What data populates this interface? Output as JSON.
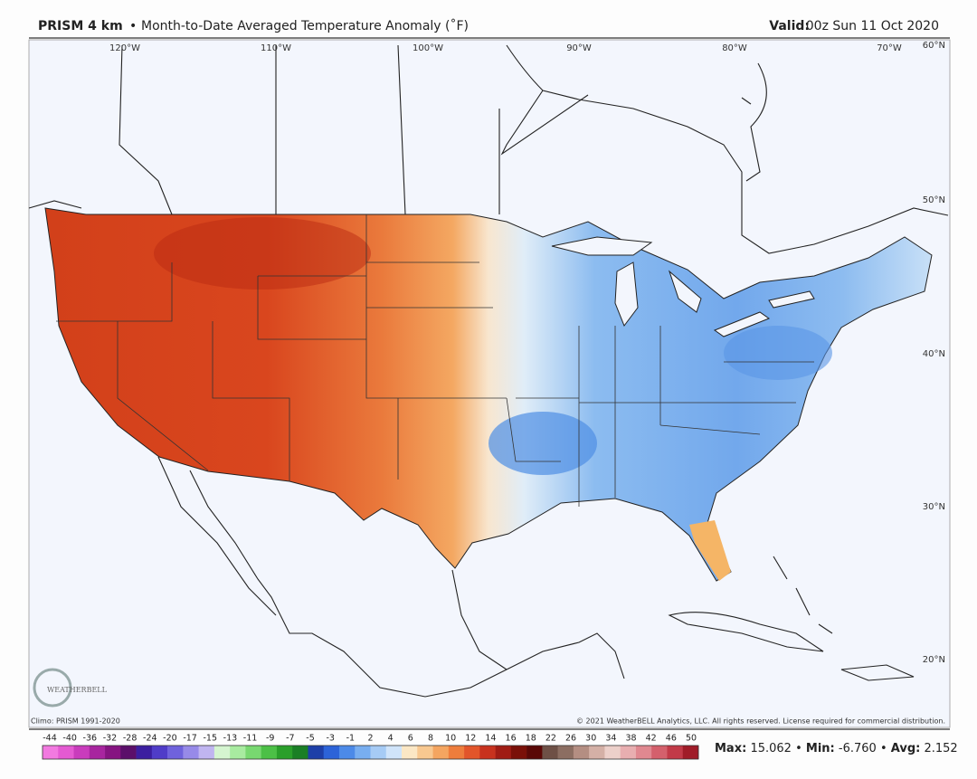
{
  "header": {
    "product": "PRISM 4 km",
    "separator": "•",
    "title": "Month-to-Date Averaged Temperature Anomaly (˚F)",
    "valid_label": "Valid:",
    "valid_time": "00z Sun 11 Oct 2020"
  },
  "map": {
    "longitude_labels": [
      "120°W",
      "110°W",
      "100°W",
      "90°W",
      "80°W",
      "70°W"
    ],
    "latitude_labels": [
      "60°N",
      "50°N",
      "40°N",
      "30°N",
      "20°N"
    ],
    "logo": "WEATHERBELL",
    "climo": "Climo: PRISM 1991-2020",
    "copyright": "© 2021 WeatherBELL Analytics, LLC. All rights reserved. License required for commercial distribution."
  },
  "colorbar": {
    "labels": [
      -44,
      -40,
      -36,
      -32,
      -28,
      -24,
      -20,
      -17,
      -15,
      -13,
      -11,
      -9,
      -7,
      -5,
      -3,
      -1,
      2,
      4,
      6,
      8,
      10,
      12,
      14,
      16,
      18,
      22,
      26,
      30,
      34,
      38,
      42,
      46,
      50
    ],
    "colors": [
      "#f27ae0",
      "#e45ad2",
      "#c93cbc",
      "#a8259f",
      "#861481",
      "#5b0f6a",
      "#3b1ea0",
      "#4f3cc8",
      "#6f62dc",
      "#978ae8",
      "#c0b5f0",
      "#d5f5d0",
      "#a8eba0",
      "#78d870",
      "#4cc046",
      "#2a9f2a",
      "#1a7f25",
      "#1d3fa8",
      "#2c63d8",
      "#4c8ae8",
      "#78aef0",
      "#a6cbf5",
      "#d0e4fa",
      "#fbe7c5",
      "#f8c890",
      "#f4a560",
      "#ee7d3c",
      "#e2552a",
      "#c8321e",
      "#a01c14",
      "#7a1008",
      "#5a0806",
      "#6e5046",
      "#8c6e62",
      "#b48e82",
      "#d4b0a6",
      "#ecd0ca",
      "#e8aeb0",
      "#e08890",
      "#d4606c",
      "#c23a48",
      "#a01c28"
    ]
  },
  "stats": {
    "max_label": "Max:",
    "max": "15.062",
    "min_label": "Min:",
    "min": "-6.760",
    "avg_label": "Avg:",
    "avg": "2.152"
  }
}
